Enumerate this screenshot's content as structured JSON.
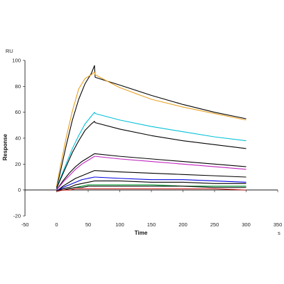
{
  "chart_data": {
    "type": "line",
    "xlabel": "Time",
    "ylabel": "Response",
    "x_unit": "s",
    "y_unit": "RU",
    "xlim": [
      -50,
      350
    ],
    "ylim": [
      -20,
      100
    ],
    "x_ticks": [
      -50,
      0,
      50,
      100,
      150,
      200,
      250,
      300,
      350
    ],
    "y_ticks": [
      -20,
      0,
      20,
      40,
      60,
      80,
      100
    ],
    "grid": false,
    "series": [
      {
        "color": "#000000",
        "x": [
          0,
          5,
          15,
          25,
          35,
          45,
          55,
          60,
          61,
          80,
          100,
          150,
          200,
          250,
          300
        ],
        "y": [
          2,
          12,
          34,
          54,
          70,
          82,
          90,
          96,
          87,
          84,
          81,
          73,
          66,
          60,
          55
        ]
      },
      {
        "color": "#E8A020",
        "x": [
          0,
          5,
          15,
          25,
          35,
          45,
          55,
          60,
          61,
          80,
          100,
          150,
          200,
          250,
          300
        ],
        "y": [
          3,
          16,
          40,
          61,
          78,
          86,
          89,
          91,
          89,
          84,
          79,
          70,
          64,
          59,
          54
        ]
      },
      {
        "color": "#00C0D8",
        "x": [
          0,
          5,
          15,
          25,
          35,
          45,
          55,
          60,
          61,
          100,
          150,
          200,
          250,
          300
        ],
        "y": [
          1,
          8,
          20,
          32,
          42,
          51,
          57,
          60,
          59,
          54,
          49,
          45,
          41,
          38
        ]
      },
      {
        "color": "#000000",
        "x": [
          0,
          5,
          15,
          25,
          35,
          45,
          55,
          60,
          61,
          100,
          150,
          200,
          250,
          300
        ],
        "y": [
          1,
          7,
          18,
          29,
          38,
          46,
          51,
          53,
          52,
          47,
          42,
          38,
          35,
          32
        ]
      },
      {
        "color": "#000000",
        "x": [
          0,
          10,
          20,
          30,
          40,
          50,
          60,
          61,
          100,
          150,
          200,
          250,
          300
        ],
        "y": [
          0,
          7,
          13,
          18,
          22,
          25,
          28,
          28,
          26,
          24,
          22,
          20,
          18
        ]
      },
      {
        "color": "#C020C0",
        "x": [
          0,
          10,
          20,
          30,
          40,
          50,
          60,
          61,
          100,
          150,
          200,
          250,
          300
        ],
        "y": [
          0,
          6,
          11,
          16,
          20,
          23,
          26,
          26,
          24,
          22,
          20,
          18,
          16
        ]
      },
      {
        "color": "#000000",
        "x": [
          0,
          10,
          20,
          30,
          40,
          50,
          60,
          61,
          100,
          150,
          200,
          250,
          300
        ],
        "y": [
          -1,
          3,
          6,
          9,
          11,
          13,
          15,
          15,
          14,
          13,
          12,
          11,
          10
        ]
      },
      {
        "color": "#0000E0",
        "x": [
          0,
          10,
          20,
          30,
          40,
          50,
          60,
          61,
          100,
          150,
          200,
          250,
          300
        ],
        "y": [
          -1,
          2,
          4,
          6,
          8,
          9,
          10,
          10,
          9,
          8,
          8,
          7,
          6
        ]
      },
      {
        "color": "#000000",
        "x": [
          0,
          10,
          20,
          30,
          40,
          50,
          60,
          61,
          100,
          150,
          200,
          250,
          300
        ],
        "y": [
          -1,
          1,
          2,
          4,
          5,
          6,
          7,
          7,
          7,
          6,
          6,
          5,
          5
        ]
      },
      {
        "color": "#00A030",
        "x": [
          0,
          10,
          20,
          30,
          40,
          50,
          60,
          61,
          100,
          150,
          200,
          250,
          300
        ],
        "y": [
          -1,
          0,
          1,
          2,
          3,
          4,
          4,
          4,
          4,
          4,
          3,
          3,
          3
        ]
      },
      {
        "color": "#000000",
        "x": [
          0,
          10,
          20,
          30,
          40,
          50,
          60,
          61,
          100,
          150,
          200,
          250,
          300
        ],
        "y": [
          -1,
          0,
          1,
          2,
          2,
          3,
          3,
          3,
          3,
          3,
          3,
          2,
          2
        ]
      },
      {
        "color": "#D02020",
        "x": [
          0,
          10,
          20,
          30,
          40,
          50,
          60,
          61,
          100,
          150,
          200,
          250,
          300
        ],
        "y": [
          -1,
          0,
          0,
          1,
          1,
          1,
          1,
          1,
          1,
          1,
          1,
          1,
          0
        ]
      }
    ]
  }
}
